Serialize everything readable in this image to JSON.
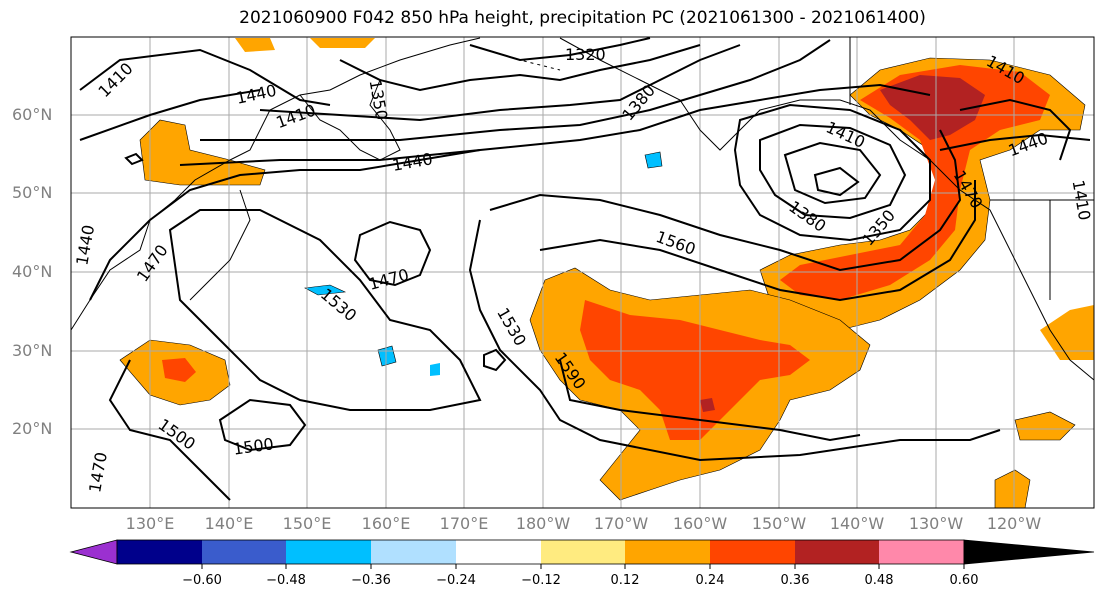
{
  "title": "2021060900 F042 850 hPa height, precipitation PC (2021061300 - 2021061400)",
  "lat_labels": [
    {
      "value": "60°N",
      "lat": 60
    },
    {
      "value": "50°N",
      "lat": 50
    },
    {
      "value": "40°N",
      "lat": 40
    },
    {
      "value": "30°N",
      "lat": 30
    },
    {
      "value": "20°N",
      "lat": 20
    }
  ],
  "lon_labels": [
    {
      "value": "130°E",
      "lon": 130
    },
    {
      "value": "140°E",
      "lon": 140
    },
    {
      "value": "150°E",
      "lon": 150
    },
    {
      "value": "160°E",
      "lon": 160
    },
    {
      "value": "170°E",
      "lon": 170
    },
    {
      "value": "180°W",
      "lon": 180
    },
    {
      "value": "170°W",
      "lon": 190
    },
    {
      "value": "160°W",
      "lon": 200
    },
    {
      "value": "150°W",
      "lon": 210
    },
    {
      "value": "140°W",
      "lon": 220
    },
    {
      "value": "130°W",
      "lon": 230
    },
    {
      "value": "120°W",
      "lon": 240
    }
  ],
  "contour_labels": [
    "1410",
    "1440",
    "1410",
    "1350",
    "1320",
    "1380",
    "1440",
    "1410",
    "1380",
    "1350",
    "1560",
    "1470",
    "1410",
    "1440",
    "1410",
    "1440",
    "1470",
    "1470",
    "1530",
    "1530",
    "1590",
    "1500",
    "1500",
    "1470"
  ],
  "colorbar": {
    "ticks": [
      "−0.60",
      "−0.48",
      "−0.36",
      "−0.24",
      "−0.12",
      "0.12",
      "0.24",
      "0.36",
      "0.48",
      "0.60"
    ],
    "colors": [
      "#9b30d0",
      "#00008b",
      "#3a5ccc",
      "#00bfff",
      "#b0e0ff",
      "#ffffff",
      "#ffeb80",
      "#ffa500",
      "#ff4500",
      "#b22222",
      "#ff88aa"
    ]
  },
  "shading_colors": {
    "light_yellow": "#ffeb80",
    "orange": "#ffa500",
    "red_orange": "#ff4500",
    "dark_red": "#b22222",
    "light_blue": "#b0e0ff",
    "blue": "#00bfff"
  }
}
